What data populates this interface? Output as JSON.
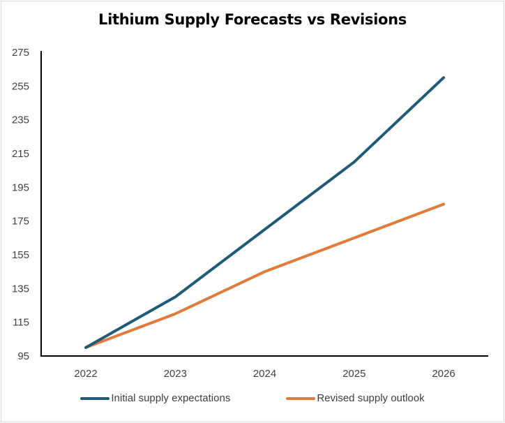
{
  "chart_data": {
    "type": "line",
    "title": "Lithium Supply Forecasts vs Revisions",
    "xlabel": "",
    "ylabel": "",
    "x": [
      "2022",
      "2023",
      "2024",
      "2025",
      "2026"
    ],
    "ylim": [
      95,
      275
    ],
    "yticks": [
      95,
      115,
      135,
      155,
      175,
      195,
      215,
      235,
      255,
      275
    ],
    "grid": false,
    "legend_position": "bottom",
    "series": [
      {
        "name": "Initial supply expectations",
        "color": "#1f5b78",
        "values": [
          100,
          130,
          170,
          210,
          260
        ]
      },
      {
        "name": "Revised supply outlook",
        "color": "#e07b3c",
        "values": [
          100,
          120,
          145,
          165,
          185
        ]
      }
    ]
  }
}
